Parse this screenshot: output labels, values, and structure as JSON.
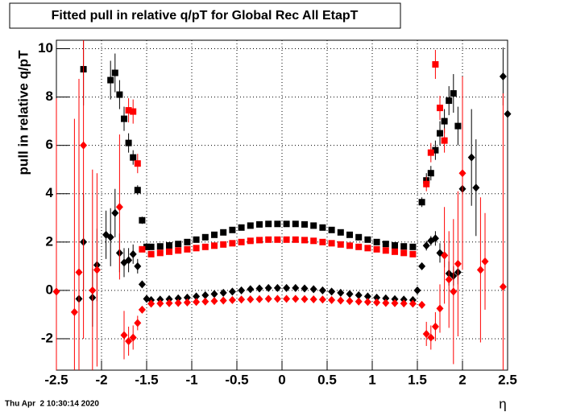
{
  "chart_data": {
    "type": "scatter",
    "title": "Fitted pull in relative q/pT for Global Rec All EtapT",
    "y_label": "pull in relative q/pT",
    "x_label": "η",
    "timestamp": "Thu Apr  2 10:30:14 2020",
    "xlim": [
      -2.5,
      2.5
    ],
    "ylim": [
      -3.3,
      10.35
    ],
    "xticks": [
      -2.5,
      -2,
      -1.5,
      -1,
      -0.5,
      0,
      0.5,
      1,
      1.5,
      2,
      2.5
    ],
    "yticks": [
      -2,
      0,
      2,
      4,
      6,
      8,
      10
    ],
    "grid": true,
    "series": [
      {
        "marker": "square",
        "color": "#000000",
        "x": [
          -2.2,
          -1.9,
          -1.85,
          -1.8,
          -1.75,
          -1.7,
          -1.65,
          -1.6,
          -1.55,
          -1.5,
          -1.45,
          -1.35,
          -1.25,
          -1.15,
          -1.05,
          -0.95,
          -0.85,
          -0.75,
          -0.65,
          -0.55,
          -0.45,
          -0.35,
          -0.25,
          -0.15,
          -0.05,
          0.05,
          0.15,
          0.25,
          0.35,
          0.45,
          0.55,
          0.65,
          0.75,
          0.85,
          0.95,
          1.05,
          1.15,
          1.25,
          1.35,
          1.45,
          1.55,
          1.6,
          1.65,
          1.7,
          1.75,
          1.8,
          1.85,
          1.9,
          1.95
        ],
        "values": [
          9.15,
          8.7,
          9.0,
          8.1,
          7.1,
          6.1,
          5.5,
          4.15,
          2.9,
          1.8,
          1.8,
          1.82,
          1.86,
          1.92,
          2.0,
          2.1,
          2.2,
          2.3,
          2.4,
          2.5,
          2.6,
          2.68,
          2.73,
          2.75,
          2.75,
          2.75,
          2.75,
          2.73,
          2.68,
          2.6,
          2.5,
          2.4,
          2.3,
          2.2,
          2.1,
          2.0,
          1.92,
          1.86,
          1.82,
          1.8,
          3.65,
          4.55,
          4.85,
          5.8,
          6.5,
          7.0,
          7.85,
          8.15,
          6.8
        ],
        "errors": [
          1.5,
          0.8,
          0.8,
          0.6,
          0.5,
          0.4,
          0.3,
          0.2,
          0.15,
          0.1,
          0.05,
          0.05,
          0.05,
          0.05,
          0.05,
          0.05,
          0.05,
          0.05,
          0.05,
          0.05,
          0.05,
          0.05,
          0.05,
          0.05,
          0.05,
          0.05,
          0.05,
          0.05,
          0.05,
          0.05,
          0.05,
          0.05,
          0.05,
          0.05,
          0.05,
          0.05,
          0.05,
          0.05,
          0.05,
          0.05,
          0.2,
          0.3,
          0.3,
          0.4,
          0.5,
          0.5,
          0.6,
          0.8,
          0.8
        ]
      },
      {
        "marker": "square",
        "color": "#ff0000",
        "x": [
          -1.7,
          -1.65,
          -1.6,
          -1.55,
          -1.45,
          -1.35,
          -1.25,
          -1.15,
          -1.05,
          -0.95,
          -0.85,
          -0.75,
          -0.65,
          -0.55,
          -0.45,
          -0.35,
          -0.25,
          -0.15,
          -0.05,
          0.05,
          0.15,
          0.25,
          0.35,
          0.45,
          0.55,
          0.65,
          0.75,
          0.85,
          0.95,
          1.05,
          1.15,
          1.25,
          1.35,
          1.45,
          1.6,
          1.65,
          1.7,
          1.75,
          1.8
        ],
        "values": [
          7.45,
          7.4,
          5.25,
          1.7,
          1.5,
          1.55,
          1.6,
          1.65,
          1.7,
          1.75,
          1.8,
          1.85,
          1.9,
          1.95,
          2.0,
          2.05,
          2.08,
          2.1,
          2.1,
          2.1,
          2.1,
          2.08,
          2.05,
          2.0,
          1.95,
          1.9,
          1.85,
          1.8,
          1.75,
          1.7,
          1.65,
          1.6,
          1.55,
          1.5,
          4.4,
          5.7,
          9.35,
          7.55,
          6.2
        ],
        "errors": [
          0.5,
          0.5,
          0.4,
          0.1,
          0.05,
          0.05,
          0.05,
          0.05,
          0.05,
          0.05,
          0.05,
          0.05,
          0.05,
          0.05,
          0.05,
          0.05,
          0.05,
          0.05,
          0.05,
          0.05,
          0.05,
          0.05,
          0.05,
          0.05,
          0.05,
          0.05,
          0.05,
          0.05,
          0.05,
          0.05,
          0.05,
          0.05,
          0.05,
          0.05,
          0.3,
          0.4,
          0.6,
          0.5,
          0.5
        ]
      },
      {
        "marker": "diamond",
        "color": "#000000",
        "x": [
          -2.25,
          -2.2,
          -2.1,
          -2.05,
          -1.95,
          -1.9,
          -1.85,
          -1.8,
          -1.75,
          -1.7,
          -1.65,
          -1.6,
          -1.55,
          -1.5,
          -1.45,
          -1.35,
          -1.25,
          -1.15,
          -1.05,
          -0.95,
          -0.85,
          -0.75,
          -0.65,
          -0.55,
          -0.45,
          -0.35,
          -0.25,
          -0.15,
          -0.05,
          0.05,
          0.15,
          0.25,
          0.35,
          0.45,
          0.55,
          0.65,
          0.75,
          0.85,
          0.95,
          1.05,
          1.15,
          1.25,
          1.35,
          1.45,
          1.5,
          1.55,
          1.6,
          1.65,
          1.7,
          1.75,
          1.8,
          1.85,
          1.9,
          1.95,
          2.0,
          2.1,
          2.15,
          2.45,
          2.5
        ],
        "values": [
          -0.35,
          2.0,
          -0.3,
          1.05,
          2.3,
          2.2,
          3.2,
          1.55,
          1.15,
          1.25,
          1.5,
          1.0,
          0.25,
          -0.35,
          -0.4,
          -0.38,
          -0.36,
          -0.33,
          -0.3,
          -0.25,
          -0.2,
          -0.15,
          -0.1,
          -0.05,
          0.0,
          0.05,
          0.08,
          0.1,
          0.1,
          0.1,
          0.1,
          0.08,
          0.05,
          0.0,
          -0.05,
          -0.1,
          -0.15,
          -0.2,
          -0.25,
          -0.3,
          -0.33,
          -0.36,
          -0.38,
          -0.4,
          0.0,
          1.0,
          1.85,
          2.05,
          2.15,
          1.55,
          1.45,
          0.7,
          0.6,
          0.75,
          4.2,
          5.5,
          4.25,
          8.85,
          7.3
        ],
        "errors": [
          2.5,
          2.0,
          1.2,
          1.5,
          1.0,
          1.2,
          1.0,
          0.8,
          0.6,
          0.5,
          0.4,
          0.3,
          0.1,
          0.05,
          0.05,
          0.05,
          0.05,
          0.05,
          0.05,
          0.05,
          0.05,
          0.05,
          0.05,
          0.05,
          0.05,
          0.05,
          0.05,
          0.05,
          0.05,
          0.05,
          0.05,
          0.05,
          0.05,
          0.05,
          0.05,
          0.05,
          0.05,
          0.05,
          0.05,
          0.05,
          0.05,
          0.05,
          0.05,
          0.05,
          0.05,
          0.1,
          0.2,
          0.2,
          0.3,
          0.4,
          0.5,
          0.5,
          0.4,
          0.5,
          1.5,
          2.0,
          2.0,
          1.2,
          4.5
        ]
      },
      {
        "marker": "diamond",
        "color": "#ff0000",
        "x": [
          -2.5,
          -2.3,
          -2.25,
          -2.2,
          -2.1,
          -2.05,
          -1.8,
          -1.75,
          -1.7,
          -1.65,
          -1.6,
          -1.55,
          -1.45,
          -1.35,
          -1.25,
          -1.15,
          -1.05,
          -0.95,
          -0.85,
          -0.75,
          -0.65,
          -0.55,
          -0.45,
          -0.35,
          -0.25,
          -0.15,
          -0.05,
          0.05,
          0.15,
          0.25,
          0.35,
          0.45,
          0.55,
          0.65,
          0.75,
          0.85,
          0.95,
          1.05,
          1.15,
          1.25,
          1.35,
          1.45,
          1.55,
          1.6,
          1.65,
          1.7,
          1.75,
          1.8,
          1.85,
          1.9,
          1.95,
          2.0,
          2.2,
          2.25,
          2.45
        ],
        "values": [
          -0.05,
          -0.9,
          0.75,
          6.0,
          0.0,
          0.85,
          3.45,
          -1.85,
          -2.1,
          -1.95,
          -1.35,
          -0.8,
          -0.55,
          -0.54,
          -0.53,
          -0.52,
          -0.5,
          -0.48,
          -0.46,
          -0.44,
          -0.42,
          -0.4,
          -0.38,
          -0.37,
          -0.36,
          -0.35,
          -0.35,
          -0.35,
          -0.35,
          -0.36,
          -0.37,
          -0.38,
          -0.4,
          -0.42,
          -0.44,
          -0.46,
          -0.48,
          -0.5,
          -0.52,
          -0.53,
          -0.54,
          -0.55,
          -0.6,
          -1.8,
          -1.95,
          -1.5,
          -0.75,
          1.45,
          0.45,
          -0.05,
          1.1,
          4.85,
          0.85,
          1.2,
          0.15
        ],
        "errors": [
          8,
          8,
          8,
          8,
          5,
          4,
          3,
          1.0,
          0.6,
          0.5,
          0.3,
          0.1,
          0.05,
          0.05,
          0.05,
          0.05,
          0.05,
          0.05,
          0.05,
          0.05,
          0.05,
          0.05,
          0.05,
          0.05,
          0.05,
          0.05,
          0.05,
          0.05,
          0.05,
          0.05,
          0.05,
          0.05,
          0.05,
          0.05,
          0.05,
          0.05,
          0.05,
          0.05,
          0.05,
          0.05,
          0.05,
          0.05,
          0.1,
          0.5,
          0.5,
          0.6,
          1.0,
          2,
          2,
          3,
          3,
          4,
          3,
          2,
          8
        ]
      }
    ]
  }
}
